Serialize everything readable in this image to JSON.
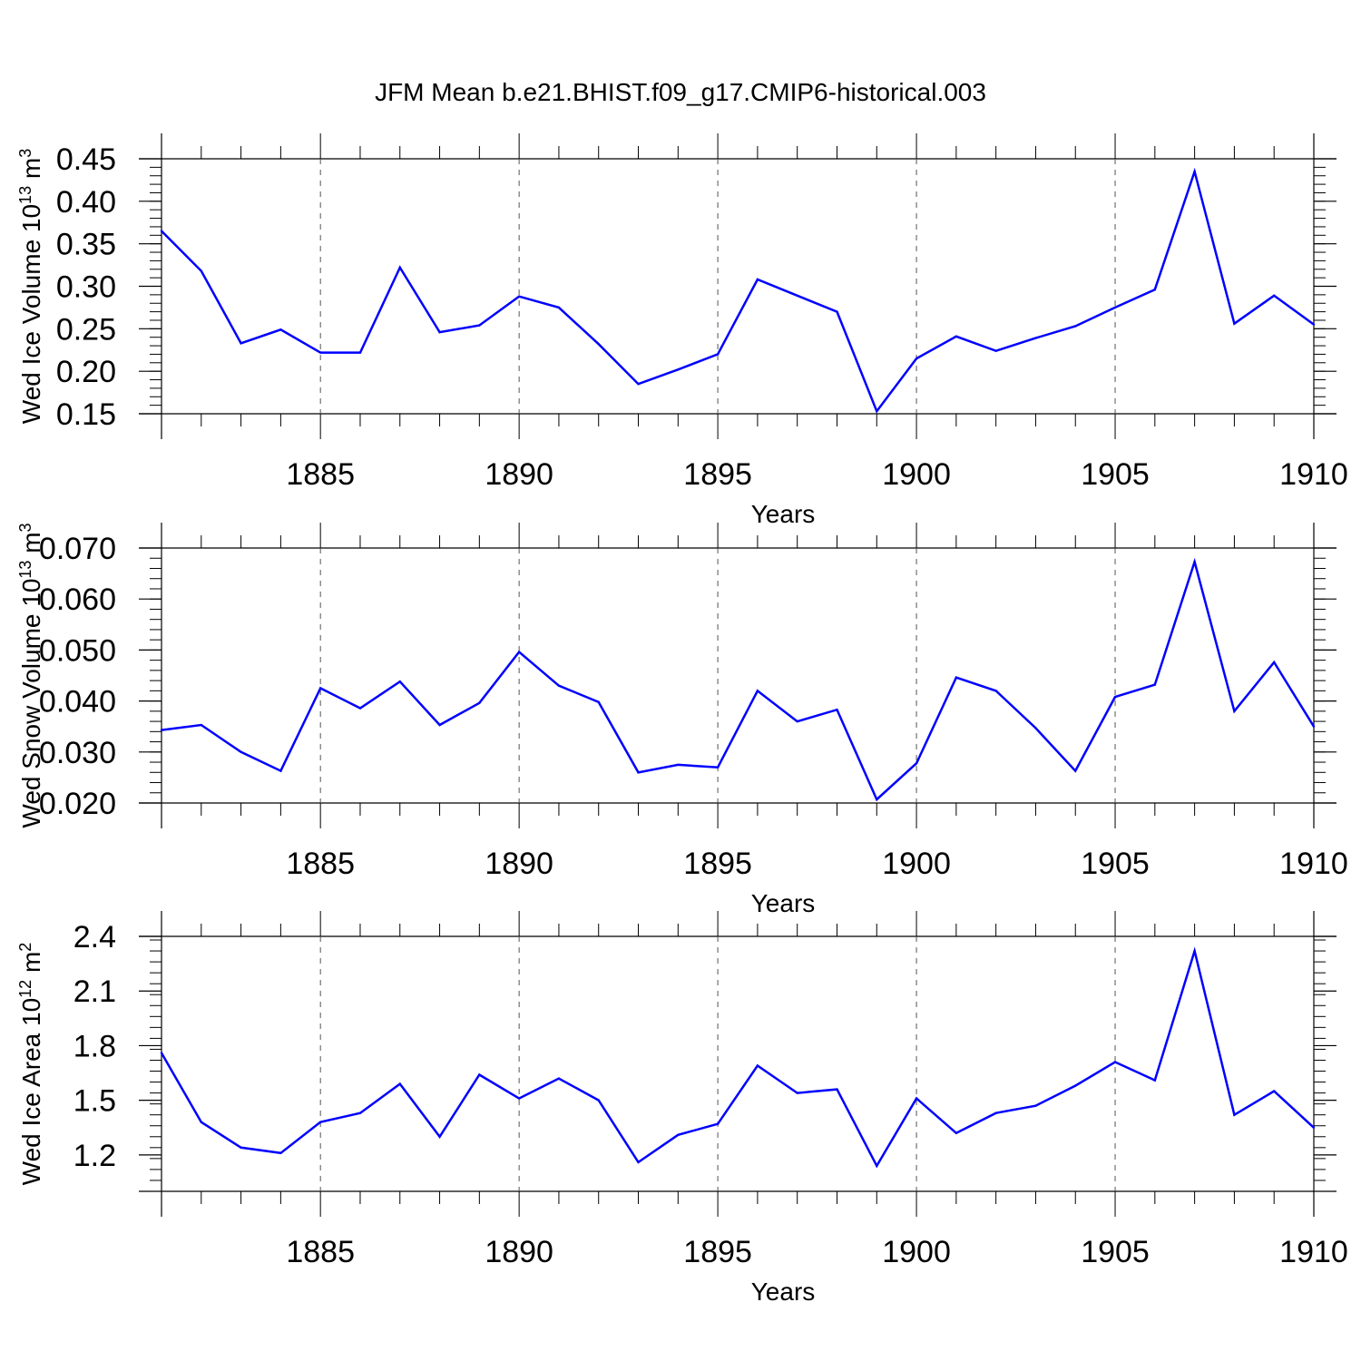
{
  "title": "JFM Mean b.e21.BHIST.f09_g17.CMIP6-historical.003",
  "colors": {
    "line": "#0000ff",
    "axis": "#000000",
    "grid": "#555555"
  },
  "chart_data": [
    {
      "type": "line",
      "ylabel": {
        "text": "Wed Ice Volume 10",
        "exp1": "13",
        "unit": " m",
        "exp2": "3"
      },
      "xlabel": "Years",
      "xlim": [
        1881,
        1910
      ],
      "ylim": [
        0.15,
        0.45
      ],
      "yticks": [
        "0.15",
        "0.20",
        "0.25",
        "0.30",
        "0.35",
        "0.40",
        "0.45"
      ],
      "yminor_step": 0.01,
      "xticks": [
        "1885",
        "1890",
        "1895",
        "1900",
        "1905",
        "1910"
      ],
      "grid": "vertical dashed at major x ticks",
      "x": [
        1881,
        1882,
        1883,
        1884,
        1885,
        1886,
        1887,
        1888,
        1889,
        1890,
        1891,
        1892,
        1893,
        1894,
        1895,
        1896,
        1897,
        1898,
        1899,
        1900,
        1901,
        1902,
        1903,
        1904,
        1905,
        1906,
        1907,
        1908,
        1909,
        1910
      ],
      "values": [
        0.365,
        0.318,
        0.233,
        0.249,
        0.222,
        0.222,
        0.322,
        0.246,
        0.254,
        0.288,
        0.275,
        0.232,
        0.185,
        0.202,
        0.22,
        0.308,
        0.289,
        0.27,
        0.153,
        0.215,
        0.241,
        0.224,
        0.239,
        0.253,
        0.275,
        0.296,
        0.435,
        0.256,
        0.289,
        0.255
      ]
    },
    {
      "type": "line",
      "ylabel": {
        "text": "Wed Snow Volume 10",
        "exp1": "13",
        "unit": " m",
        "exp2": "3"
      },
      "xlabel": "Years",
      "xlim": [
        1881,
        1910
      ],
      "ylim": [
        0.02,
        0.07
      ],
      "yticks": [
        "0.020",
        "0.030",
        "0.040",
        "0.050",
        "0.060",
        "0.070"
      ],
      "yminor_step": 0.002,
      "xticks": [
        "1885",
        "1890",
        "1895",
        "1900",
        "1905",
        "1910"
      ],
      "grid": "vertical dashed at major x ticks",
      "x": [
        1881,
        1882,
        1883,
        1884,
        1885,
        1886,
        1887,
        1888,
        1889,
        1890,
        1891,
        1892,
        1893,
        1894,
        1895,
        1896,
        1897,
        1898,
        1899,
        1900,
        1901,
        1902,
        1903,
        1904,
        1905,
        1906,
        1907,
        1908,
        1909,
        1910
      ],
      "values": [
        0.0343,
        0.0353,
        0.03,
        0.0263,
        0.0425,
        0.0386,
        0.0438,
        0.0353,
        0.0396,
        0.0496,
        0.043,
        0.0398,
        0.026,
        0.0275,
        0.027,
        0.042,
        0.036,
        0.0383,
        0.0207,
        0.0278,
        0.0446,
        0.042,
        0.0347,
        0.0263,
        0.0408,
        0.0432,
        0.0673,
        0.038,
        0.0476,
        0.035
      ]
    },
    {
      "type": "line",
      "ylabel": {
        "text": "Wed Ice Area 10",
        "exp1": "12",
        "unit": " m",
        "exp2": "2"
      },
      "xlabel": "Years",
      "xlim": [
        1881,
        1910
      ],
      "ylim": [
        1.0,
        2.4
      ],
      "yticks_values": [
        1.2,
        1.5,
        1.8,
        2.1,
        2.4
      ],
      "yticks": [
        "1.2",
        "1.5",
        "1.8",
        "2.1",
        "2.4"
      ],
      "yminor_step": 0.06,
      "xticks": [
        "1885",
        "1890",
        "1895",
        "1900",
        "1905",
        "1910"
      ],
      "grid": "vertical dashed at major x ticks",
      "x": [
        1881,
        1882,
        1883,
        1884,
        1885,
        1886,
        1887,
        1888,
        1889,
        1890,
        1891,
        1892,
        1893,
        1894,
        1895,
        1896,
        1897,
        1898,
        1899,
        1900,
        1901,
        1902,
        1903,
        1904,
        1905,
        1906,
        1907,
        1908,
        1909,
        1910
      ],
      "values": [
        1.76,
        1.38,
        1.24,
        1.21,
        1.38,
        1.43,
        1.59,
        1.3,
        1.64,
        1.51,
        1.62,
        1.5,
        1.16,
        1.31,
        1.37,
        1.69,
        1.54,
        1.56,
        1.14,
        1.51,
        1.32,
        1.43,
        1.47,
        1.58,
        1.71,
        1.61,
        2.32,
        1.42,
        1.55,
        1.35
      ]
    }
  ]
}
